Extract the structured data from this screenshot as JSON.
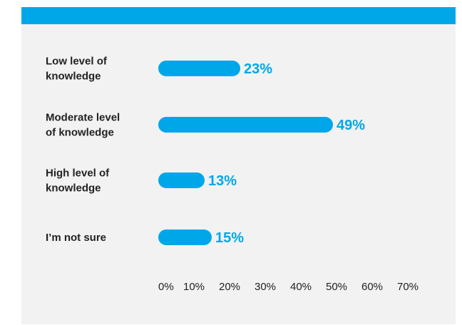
{
  "colors": {
    "accent": "#00a7e8",
    "background": "#f2f2f2"
  },
  "chart_data": {
    "type": "bar",
    "orientation": "horizontal",
    "categories": [
      [
        "Low level of",
        "knowledge"
      ],
      [
        "Moderate level",
        "of knowledge"
      ],
      [
        "High level of",
        "knowledge"
      ],
      [
        "I’m not sure"
      ]
    ],
    "values": [
      23,
      49,
      13,
      15
    ],
    "value_labels": [
      "23%",
      "49%",
      "13%",
      "15%"
    ],
    "xlim": [
      0,
      70
    ],
    "x_ticks": [
      "0%",
      "10%",
      "20%",
      "30%",
      "40%",
      "50%",
      "60%",
      "70%"
    ],
    "grid": false,
    "legend": "none"
  }
}
